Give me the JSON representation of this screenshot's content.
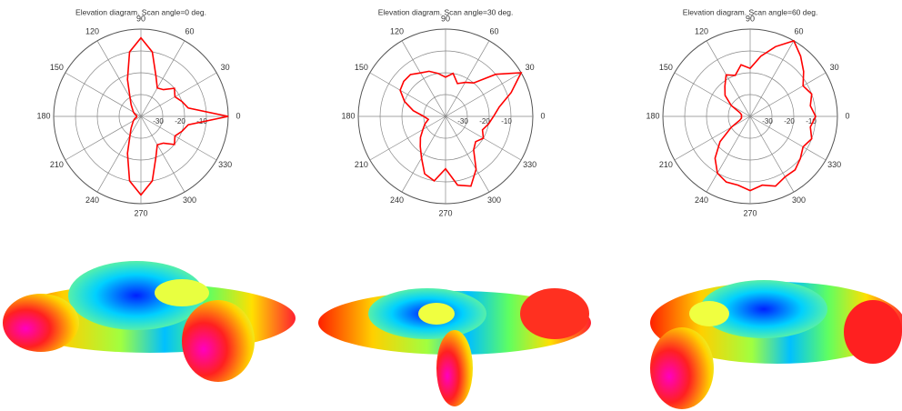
{
  "chart_data": [
    {
      "type": "polar",
      "title": "Elevation diagram. Scan angle=0 deg.",
      "color": "#ff0000",
      "x": [
        0,
        10,
        20,
        30,
        40,
        50,
        60,
        70,
        80,
        90,
        100,
        110,
        120,
        130,
        140,
        150,
        160,
        170,
        180,
        190,
        200,
        210,
        220,
        230,
        240,
        250,
        260,
        270,
        280,
        290,
        300,
        310,
        320,
        330,
        340,
        350
      ],
      "values": [
        0,
        -18,
        -20,
        -22,
        -20,
        -24,
        -25,
        -20,
        -10,
        -4,
        -10,
        -22,
        -30,
        -33,
        -35,
        -36,
        -37,
        -38,
        -38,
        -38,
        -37,
        -36,
        -35,
        -33,
        -30,
        -22,
        -10,
        -4,
        -10,
        -20,
        -25,
        -24,
        -20,
        -22,
        -20,
        -18
      ],
      "rlim": [
        -40,
        0
      ],
      "rticks": [
        -30,
        -20,
        -10
      ],
      "thetaticks": [
        0,
        30,
        60,
        90,
        120,
        150,
        180,
        210,
        240,
        270,
        300,
        330
      ]
    },
    {
      "type": "polar",
      "title": "Elevation diagram. Scan angle=30 deg.",
      "color": "#ff0000",
      "x": [
        0,
        10,
        20,
        30,
        40,
        50,
        60,
        70,
        80,
        90,
        100,
        110,
        120,
        130,
        140,
        150,
        160,
        170,
        180,
        190,
        200,
        210,
        220,
        230,
        240,
        250,
        260,
        270,
        280,
        290,
        300,
        310,
        320,
        330,
        340,
        350
      ],
      "values": [
        -18,
        -15,
        -8,
        0,
        -10,
        -20,
        -22,
        -24,
        -20,
        -22,
        -20,
        -18,
        -17,
        -15,
        -15,
        -16,
        -20,
        -25,
        -30,
        -32,
        -30,
        -28,
        -25,
        -22,
        -18,
        -12,
        -10,
        -16,
        -8,
        -6,
        -12,
        -20,
        -22,
        -20,
        -22,
        -20
      ],
      "rlim": [
        -40,
        0
      ],
      "rticks": [
        -30,
        -20,
        -10
      ],
      "thetaticks": [
        0,
        30,
        60,
        90,
        120,
        150,
        180,
        210,
        240,
        270,
        300,
        330
      ]
    },
    {
      "type": "polar",
      "title": "Elevation diagram. Scan angle=60 deg.",
      "color": "#ff0000",
      "x": [
        0,
        10,
        20,
        30,
        40,
        50,
        60,
        70,
        80,
        90,
        100,
        110,
        120,
        130,
        140,
        150,
        160,
        170,
        180,
        190,
        200,
        210,
        220,
        230,
        240,
        250,
        260,
        270,
        280,
        290,
        300,
        310,
        320,
        330,
        340,
        350
      ],
      "values": [
        -10,
        -12,
        -10,
        -12,
        -8,
        -4,
        0,
        -6,
        -12,
        -18,
        -16,
        -20,
        -18,
        -22,
        -25,
        -30,
        -35,
        -36,
        -36,
        -36,
        -35,
        -30,
        -22,
        -15,
        -10,
        -8,
        -8,
        -6,
        -8,
        -6,
        -8,
        -8,
        -10,
        -12,
        -10,
        -12
      ],
      "rlim": [
        -40,
        0
      ],
      "rticks": [
        -30,
        -20,
        -10
      ],
      "thetaticks": [
        0,
        30,
        60,
        90,
        120,
        150,
        180,
        210,
        240,
        270,
        300,
        330
      ]
    }
  ]
}
